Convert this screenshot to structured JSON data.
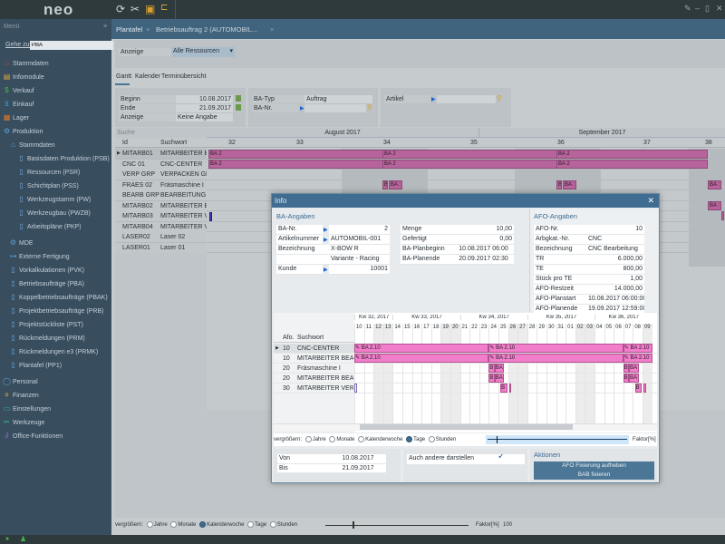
{
  "app": {
    "logo": "neo",
    "toolbar_icons": [
      "refresh-icon",
      "tools-icon",
      "print-icon",
      "hierarchy-icon"
    ],
    "window_controls": [
      "pin",
      "minimize",
      "restore",
      "close"
    ]
  },
  "sidebar": {
    "header": "Menü",
    "goto_label": "Gehe zu...",
    "goto_value": "PBA",
    "items": [
      {
        "label": "Stammdaten",
        "level": 0,
        "icon": "house-icon",
        "color": "#d0453a"
      },
      {
        "label": "Infomodule",
        "level": 0,
        "icon": "chart-icon",
        "color": "#d8a63a"
      },
      {
        "label": "Verkauf",
        "level": 0,
        "icon": "dollar-icon",
        "color": "#4caf50"
      },
      {
        "label": "Einkauf",
        "level": 0,
        "icon": "cart-icon",
        "color": "#3aa0d8"
      },
      {
        "label": "Lager",
        "level": 0,
        "icon": "box-icon",
        "color": "#e07a2a"
      },
      {
        "label": "Produktion",
        "level": 0,
        "icon": "gears-icon",
        "color": "#5aa0d0"
      },
      {
        "label": "Stammdaten",
        "level": 1,
        "icon": "house-icon",
        "color": "#5aa0d0"
      },
      {
        "label": "Basisdaten Produktion (PSB)",
        "level": 2,
        "icon": "document-icon",
        "color": "#6fa8d8"
      },
      {
        "label": "Ressourcen (PSR)",
        "level": 2,
        "icon": "document-icon",
        "color": "#6fa8d8"
      },
      {
        "label": "Schichtplan (PSS)",
        "level": 2,
        "icon": "document-icon",
        "color": "#6fa8d8"
      },
      {
        "label": "Werkzeugstamm (PW)",
        "level": 2,
        "icon": "document-icon",
        "color": "#6fa8d8"
      },
      {
        "label": "Werkzeugbau (PWZB)",
        "level": 2,
        "icon": "document-icon",
        "color": "#6fa8d8"
      },
      {
        "label": "Arbeitspläne (PKP)",
        "level": 2,
        "icon": "document-icon",
        "color": "#6fa8d8"
      },
      {
        "label": "MDE",
        "level": 1,
        "icon": "gears-icon",
        "color": "#5aa0d0"
      },
      {
        "label": "Externe Fertigung",
        "level": 1,
        "icon": "factory-icon",
        "color": "#5aa0d0"
      },
      {
        "label": "Vorkalkulationen (PVK)",
        "level": 1,
        "icon": "document-icon",
        "color": "#6fa8d8"
      },
      {
        "label": "Betriebsaufträge (PBA)",
        "level": 1,
        "icon": "document-icon",
        "color": "#6fa8d8"
      },
      {
        "label": "Koppelbetriebsaufträge (PBAK)",
        "level": 1,
        "icon": "document-icon",
        "color": "#6fa8d8"
      },
      {
        "label": "Projektbetriebsaufträge (PRB)",
        "level": 1,
        "icon": "document-icon",
        "color": "#6fa8d8"
      },
      {
        "label": "Projektstückliste (PST)",
        "level": 1,
        "icon": "document-icon",
        "color": "#6fa8d8"
      },
      {
        "label": "Rückmeldungen (PRM)",
        "level": 1,
        "icon": "document-icon",
        "color": "#6fa8d8"
      },
      {
        "label": "Rückmeldungen e3 (PRMK)",
        "level": 1,
        "icon": "document-icon",
        "color": "#6fa8d8"
      },
      {
        "label": "Plantafel (PP1)",
        "level": 1,
        "icon": "document-icon",
        "color": "#6fa8d8"
      },
      {
        "label": "Personal",
        "level": 0,
        "icon": "person-icon",
        "color": "#5aa0d0"
      },
      {
        "label": "Finanzen",
        "level": 0,
        "icon": "money-icon",
        "color": "#e0a030"
      },
      {
        "label": "Einstellungen",
        "level": 0,
        "icon": "monitor-icon",
        "color": "#3ab0c0"
      },
      {
        "label": "Werkzeuge",
        "level": 0,
        "icon": "tools-icon",
        "color": "#3ac0a0"
      },
      {
        "label": "Office-Funktionen",
        "level": 0,
        "icon": "paperclip-icon",
        "color": "#8a6ad0"
      }
    ]
  },
  "tabs": [
    {
      "label": "Plantafel",
      "active": true
    },
    {
      "label": "Betriebsauftrag 2 (AUTOMOBIL..."
    }
  ],
  "anzeige": {
    "label": "Anzeige",
    "value": "Alle Ressourcen"
  },
  "view_tabs": [
    {
      "label": "Gantt",
      "active": true
    },
    {
      "label": "Kalender"
    },
    {
      "label": "Terminübersicht"
    }
  ],
  "filter": {
    "beginn_label": "Beginn",
    "beginn": "10.08.2017",
    "ende_label": "Ende",
    "ende": "21.09.2017",
    "anzeige_label": "Anzeige",
    "anzeige": "Keine Angabe",
    "batyp_label": "BA-Typ",
    "batyp": "Auftrag",
    "banr_label": "BA-Nr.",
    "banr": "",
    "artikel_label": "Artikel",
    "artikel": ""
  },
  "gantt": {
    "search_label": "Suche",
    "col_id": "Id",
    "col_suchwort": "Suchwort",
    "months": [
      "August 2017",
      "September 2017"
    ],
    "weeks": [
      "32",
      "33",
      "34",
      "35",
      "36",
      "37",
      "38"
    ],
    "rows": [
      {
        "id": "MITARB01",
        "suchwort": "MITARBEITER BEARBEITUNG"
      },
      {
        "id": "CNC 01",
        "suchwort": "CNC-CENTER"
      },
      {
        "id": "VERP GRP",
        "suchwort": "VERPACKEN GRUPPE"
      },
      {
        "id": "FRAES 02",
        "suchwort": "Fräsmaschine I"
      },
      {
        "id": "BEARB GRP",
        "suchwort": "BEARBEITUNG GRUPPE"
      },
      {
        "id": "MITARB02",
        "suchwort": "MITARBEITER BEARBEITUNG"
      },
      {
        "id": "MITARB03",
        "suchwort": "MITARBEITER VERPACKEN"
      },
      {
        "id": "MITARB04",
        "suchwort": "MITARBEITER VERPACKEN"
      },
      {
        "id": "LASER02",
        "suchwort": "Laser 02"
      },
      {
        "id": "LASER01",
        "suchwort": "Laser 01"
      }
    ],
    "bar_label": "BA 2",
    "bar_short": "B",
    "bar_mid": "BA",
    "bar_trunc": "BA :",
    "bar_color": "#b8649c"
  },
  "zoom": {
    "label": "vergrößern:",
    "options": [
      "Jahre",
      "Monate",
      "Kalenderwoche",
      "Tage",
      "Stunden"
    ],
    "selected": "Kalenderwoche",
    "faktor_label": "Faktor[%]",
    "faktor": "100"
  },
  "modal": {
    "title": "Info",
    "ba_section": "BA-Angaben",
    "ba_left": [
      {
        "label": "BA-Nr.",
        "value": "2",
        "link": true,
        "align": "right"
      },
      {
        "label": "Artikelnummer",
        "value": "AUTOMOBIL-001",
        "link": true
      },
      {
        "label": "Bezeichnung",
        "value": "X-BOW R"
      },
      {
        "label": "",
        "value": "Variante - Racing"
      },
      {
        "label": "Kunde",
        "value": "10001",
        "link": true,
        "align": "right"
      }
    ],
    "ba_right": [
      {
        "label": "Menge",
        "value": "10,00",
        "align": "right"
      },
      {
        "label": "Gefertigt",
        "value": "0,00",
        "align": "right"
      },
      {
        "label": "BA-Planbeginn",
        "value": "10.08.2017 06:00",
        "align": "center"
      },
      {
        "label": "BA-Planende",
        "value": "20.09.2017 02:30",
        "align": "center"
      }
    ],
    "afo_section": "AFO-Angaben",
    "afo": [
      {
        "label": "AFO-Nr.",
        "value": "10",
        "align": "right"
      },
      {
        "label": "Arbgkat.-Nr.",
        "value": "CNC"
      },
      {
        "label": "Bezeichnung",
        "value": "CNC Bearbeitung"
      },
      {
        "label": "TR",
        "value": "6.000,00",
        "align": "right"
      },
      {
        "label": "TE",
        "value": "800,00",
        "align": "right"
      },
      {
        "label": "Stück pro TE",
        "value": "1,00",
        "align": "right"
      },
      {
        "label": "AFO-Restzeit",
        "value": "14.000,00",
        "align": "right"
      },
      {
        "label": "AFO-Planstart",
        "value": "10.08.2017 06:00:00"
      },
      {
        "label": "AFO-Planende",
        "value": "19.09.2017 12:59:00"
      }
    ],
    "gantt": {
      "search_label": "Suche",
      "col_afo": "Afo.",
      "col_suchwort": "Suchwort",
      "weeks": [
        {
          "label": "Kw 32, 2017",
          "days": 4
        },
        {
          "label": "Kw 33, 2017",
          "days": 7
        },
        {
          "label": "Kw 34, 2017",
          "days": 7
        },
        {
          "label": "Kw 35, 2017",
          "days": 7
        },
        {
          "label": "Kw 36, 2017",
          "days": 6
        }
      ],
      "days": [
        "10",
        "11",
        "12",
        "13",
        "14",
        "15",
        "16",
        "17",
        "18",
        "19",
        "20",
        "21",
        "22",
        "23",
        "24",
        "25",
        "26",
        "27",
        "28",
        "29",
        "30",
        "31",
        "01",
        "02",
        "03",
        "04",
        "05",
        "06",
        "07",
        "08",
        "09"
      ],
      "weekend_days": [
        "12",
        "13",
        "19",
        "20",
        "26",
        "27",
        "02",
        "03",
        "09"
      ],
      "rows": [
        {
          "afo": "10",
          "suchwort": "CNC-CENTER",
          "selected": true
        },
        {
          "afo": "10",
          "suchwort": "MITARBEITER BEARBEITUNG"
        },
        {
          "afo": "20",
          "suchwort": "Fräsmaschine I"
        },
        {
          "afo": "20",
          "suchwort": "MITARBEITER BEARBEITUNG"
        },
        {
          "afo": "30",
          "suchwort": "MITARBEITER VERPACKEN"
        }
      ],
      "bars": [
        {
          "row": 0,
          "start": 0,
          "end": 14,
          "label": "BA 2.10",
          "pin": true
        },
        {
          "row": 0,
          "start": 14,
          "end": 28,
          "label": "BA 2.10",
          "pin": true
        },
        {
          "row": 0,
          "start": 28,
          "end": 31,
          "label": "BA 2.10",
          "pin": true
        },
        {
          "row": 1,
          "start": 0,
          "end": 14,
          "label": "BA 2.10",
          "pin": true
        },
        {
          "row": 1,
          "start": 14,
          "end": 28,
          "label": "BA 2.10",
          "pin": true
        },
        {
          "row": 1,
          "start": 28,
          "end": 31,
          "label": "BA 2.10",
          "pin": true
        },
        {
          "row": 2,
          "start": 14,
          "end": 14.6,
          "label": "B"
        },
        {
          "row": 2,
          "start": 14.6,
          "end": 15.6,
          "label": "BA"
        },
        {
          "row": 2,
          "start": 28,
          "end": 28.6,
          "label": "B"
        },
        {
          "row": 2,
          "start": 28.6,
          "end": 29.6,
          "label": "BA"
        },
        {
          "row": 3,
          "start": 14,
          "end": 14.6,
          "label": "B"
        },
        {
          "row": 3,
          "start": 14.6,
          "end": 15.6,
          "label": "BA"
        },
        {
          "row": 3,
          "start": 28,
          "end": 28.6,
          "label": "B"
        },
        {
          "row": 3,
          "start": 28.6,
          "end": 29.6,
          "label": "BA"
        },
        {
          "row": 4,
          "start": 0,
          "end": 0.3,
          "label": "",
          "outline": true
        },
        {
          "row": 4,
          "start": 15.2,
          "end": 15.9,
          "label": "B"
        },
        {
          "row": 4,
          "start": 16.1,
          "end": 16.35,
          "label": ""
        },
        {
          "row": 4,
          "start": 29.2,
          "end": 29.9,
          "label": "B"
        },
        {
          "row": 4,
          "start": 30.1,
          "end": 30.35,
          "label": ""
        }
      ],
      "bar_color": "#f27dcb"
    },
    "zoom": {
      "label": "vergrößern:",
      "options": [
        "Jahre",
        "Monate",
        "Kalenderwoche",
        "Tage",
        "Stunden"
      ],
      "selected": "Tage",
      "faktor_label": "Faktor[%]"
    },
    "von_label": "Von",
    "von": "10.08.2017",
    "bis_label": "Bis",
    "bis": "21.09.2017",
    "auch_label": "Auch andere darstellen",
    "auch_checked": true,
    "aktionen_title": "Aktionen",
    "action1": "AFO Fixierung aufheben",
    "action2": "BAB fixieren"
  }
}
